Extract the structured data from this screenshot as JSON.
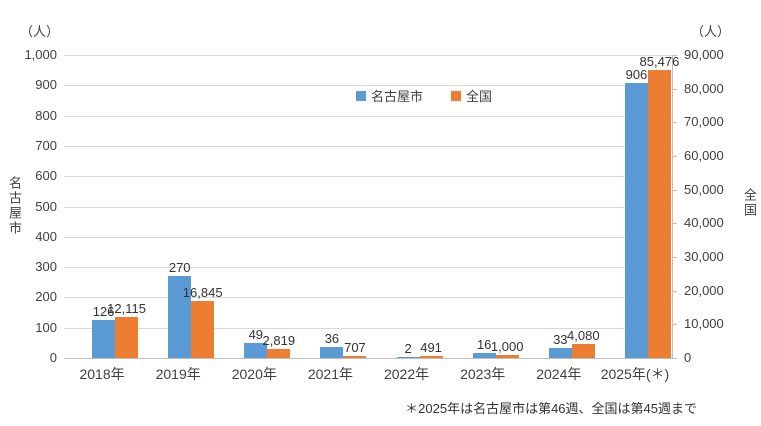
{
  "chart_data": {
    "type": "bar",
    "title": "",
    "categories": [
      "2018年",
      "2019年",
      "2020年",
      "2021年",
      "2022年",
      "2023年",
      "2024年",
      "2025年(＊)"
    ],
    "series": [
      {
        "name": "名古屋市",
        "axis": "left",
        "color": "#5B9BD5",
        "values": [
          126,
          270,
          49,
          36,
          2,
          16,
          33,
          906
        ],
        "data_labels": [
          "126",
          "270",
          "49",
          "36",
          "2",
          "16",
          "33",
          "906"
        ]
      },
      {
        "name": "全国",
        "axis": "right",
        "color": "#ED7D31",
        "values": [
          12115,
          16845,
          2819,
          707,
          491,
          1000,
          4080,
          85476
        ],
        "data_labels": [
          "12,115",
          "16,845",
          "2,819",
          "707",
          "491",
          "1,000",
          "4,080",
          "85,476"
        ]
      }
    ],
    "left_axis": {
      "unit": "（人）",
      "title": "名古屋市",
      "min": 0,
      "max": 1000,
      "step": 100,
      "tick_labels_top_down": [
        "1,000",
        "900",
        "800",
        "700",
        "600",
        "500",
        "400",
        "300",
        "200",
        "100",
        "0"
      ]
    },
    "right_axis": {
      "unit": "（人）",
      "title": "全国",
      "min": 0,
      "max": 90000,
      "step": 10000,
      "tick_labels_top_down": [
        "90,000",
        "80,000",
        "70,000",
        "60,000",
        "50,000",
        "40,000",
        "30,000",
        "20,000",
        "10,000",
        "0"
      ]
    },
    "legend": {
      "position": "top-center",
      "items": [
        {
          "label": "名古屋市",
          "color": "#5B9BD5"
        },
        {
          "label": "全国",
          "color": "#ED7D31"
        }
      ]
    },
    "grid": true,
    "footnote": "＊2025年は名古屋市は第46週、全国は第45週まで",
    "colors": {
      "gridline": "#d9d9d9",
      "axis_line": "#bfbfbf",
      "text": "#404040"
    }
  }
}
